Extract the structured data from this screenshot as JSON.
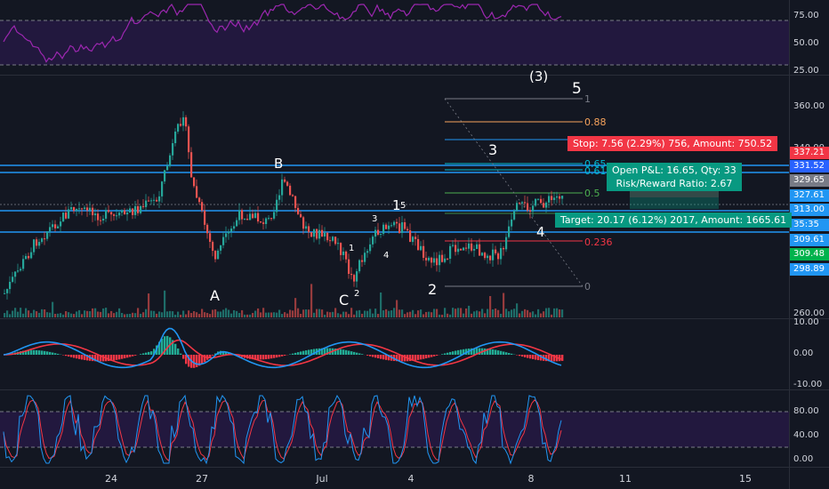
{
  "panes": {
    "rsi": {
      "ticks": [
        "75.00",
        "50.00",
        "25.00"
      ]
    },
    "price": {
      "ticks": [
        "360.00",
        "340.00",
        "260.00"
      ]
    },
    "macd": {
      "ticks": [
        "10.00",
        "0.00",
        "-10.00"
      ]
    },
    "stoch": {
      "ticks": [
        "80.00",
        "40.00",
        "0.00"
      ]
    }
  },
  "price_tags": [
    {
      "value": "337.21",
      "color": "#f23645"
    },
    {
      "value": "331.52",
      "color": "#2962ff"
    },
    {
      "value": "329.65",
      "color": "#787b86"
    },
    {
      "value": "327.61",
      "color": "#2196f3"
    },
    {
      "value": "313.00",
      "color": "#2196f3"
    },
    {
      "value": "35:35",
      "color": "#2196f3"
    },
    {
      "value": "309.61",
      "color": "#2196f3"
    },
    {
      "value": "309.48",
      "color": "#00b34d"
    },
    {
      "value": "298.89",
      "color": "#2196f3"
    }
  ],
  "x_axis": [
    "24",
    "27",
    "Jul",
    "4",
    "8",
    "11",
    "15"
  ],
  "fib_levels": [
    {
      "label": "1",
      "color": "#787b86"
    },
    {
      "label": "0.88",
      "color": "#f7a35c"
    },
    {
      "label": "0.65",
      "color": "#00bcd4"
    },
    {
      "label": "0.618",
      "color": "#00bcd4"
    },
    {
      "label": "0.5",
      "color": "#4caf50"
    },
    {
      "label": "0.236",
      "color": "#f23645"
    },
    {
      "label": "0",
      "color": "#787b86"
    }
  ],
  "waves": {
    "A": "A",
    "B": "B",
    "C": "C",
    "w1": "1",
    "w2": "2",
    "w3": "3",
    "w4": "4",
    "w5": "5",
    "s1": "1",
    "s2": "2",
    "s3": "3",
    "s4": "4",
    "s5": "5",
    "big1": "1",
    "big5": "5",
    "big3": "(3)"
  },
  "position": {
    "stop": "Stop: 7.56 (2.29%) 756, Amount: 750.52",
    "pnl": "Open P&L: 16.65, Qty: 33",
    "rr": "Risk/Reward Ratio: 2.67",
    "target": "Target: 20.17 (6.12%) 2017, Amount: 1665.61"
  },
  "colors": {
    "background": "#131722",
    "up": "#26a69a",
    "down": "#ef5350",
    "rsi": "#9c27b0",
    "macd": "#2196f3",
    "signal": "#f23645"
  }
}
